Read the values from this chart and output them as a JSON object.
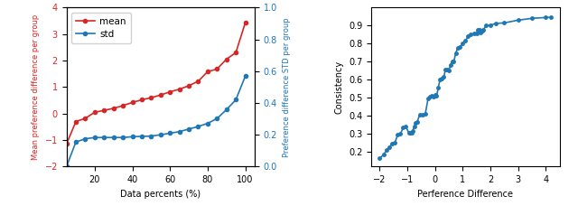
{
  "left": {
    "mean_x": [
      5,
      10,
      15,
      20,
      25,
      30,
      35,
      40,
      45,
      50,
      55,
      60,
      65,
      70,
      75,
      80,
      85,
      90,
      95,
      100
    ],
    "mean_y": [
      -1.15,
      -0.3,
      -0.18,
      0.05,
      0.12,
      0.2,
      0.3,
      0.42,
      0.52,
      0.6,
      0.7,
      0.82,
      0.92,
      1.05,
      1.22,
      1.58,
      1.68,
      2.05,
      2.3,
      3.42
    ],
    "std_x": [
      5,
      10,
      15,
      20,
      25,
      30,
      35,
      40,
      45,
      50,
      55,
      60,
      65,
      70,
      75,
      80,
      85,
      90,
      95,
      100
    ],
    "std_y": [
      0.0,
      0.155,
      0.175,
      0.183,
      0.183,
      0.183,
      0.183,
      0.188,
      0.19,
      0.192,
      0.2,
      0.21,
      0.22,
      0.236,
      0.252,
      0.272,
      0.302,
      0.358,
      0.42,
      0.568
    ],
    "mean_color": "#d62728",
    "std_color": "#1f77b4",
    "left_ylabel": "Mean preference difference per group",
    "right_ylabel": "Preference difference STD per group",
    "xlabel": "Data percents (%)",
    "ylim_left": [
      -2,
      4
    ],
    "ylim_right": [
      0.0,
      1.0
    ],
    "left_yticks": [
      -2,
      -1,
      0,
      1,
      2,
      3,
      4
    ],
    "right_yticks": [
      0.0,
      0.2,
      0.4,
      0.6,
      0.8,
      1.0
    ],
    "xticks": [
      20,
      40,
      60,
      80,
      100
    ],
    "legend_mean": "mean",
    "legend_std": "std"
  },
  "right": {
    "x": [
      -2.0,
      -1.85,
      -1.75,
      -1.65,
      -1.55,
      -1.45,
      -1.35,
      -1.25,
      -1.15,
      -1.05,
      -0.95,
      -0.9,
      -0.85,
      -0.8,
      -0.75,
      -0.7,
      -0.65,
      -0.55,
      -0.45,
      -0.35,
      -0.25,
      -0.18,
      -0.12,
      -0.06,
      0.0,
      0.06,
      0.12,
      0.18,
      0.25,
      0.32,
      0.38,
      0.44,
      0.5,
      0.56,
      0.62,
      0.68,
      0.75,
      0.82,
      0.9,
      1.0,
      1.1,
      1.2,
      1.3,
      1.4,
      1.5,
      1.55,
      1.6,
      1.65,
      1.7,
      1.75,
      1.85,
      2.0,
      2.2,
      2.5,
      3.0,
      3.5,
      4.0,
      4.2
    ],
    "y": [
      0.165,
      0.188,
      0.21,
      0.228,
      0.248,
      0.252,
      0.295,
      0.3,
      0.335,
      0.34,
      0.308,
      0.305,
      0.308,
      0.318,
      0.343,
      0.36,
      0.365,
      0.408,
      0.405,
      0.412,
      0.495,
      0.505,
      0.51,
      0.505,
      0.515,
      0.51,
      0.558,
      0.6,
      0.605,
      0.615,
      0.658,
      0.655,
      0.65,
      0.68,
      0.7,
      0.7,
      0.748,
      0.775,
      0.78,
      0.8,
      0.815,
      0.84,
      0.85,
      0.855,
      0.855,
      0.875,
      0.875,
      0.862,
      0.87,
      0.878,
      0.9,
      0.902,
      0.912,
      0.915,
      0.93,
      0.94,
      0.945,
      0.946
    ],
    "color": "#1f77b4",
    "xlabel": "Perference Difference",
    "ylabel": "Consistency",
    "xlim": [
      -2.3,
      4.5
    ],
    "ylim": [
      0.12,
      1.0
    ],
    "xticks": [
      -2,
      -1,
      0,
      1,
      2,
      3,
      4
    ],
    "yticks": [
      0.2,
      0.3,
      0.4,
      0.5,
      0.6,
      0.7,
      0.8,
      0.9
    ]
  }
}
